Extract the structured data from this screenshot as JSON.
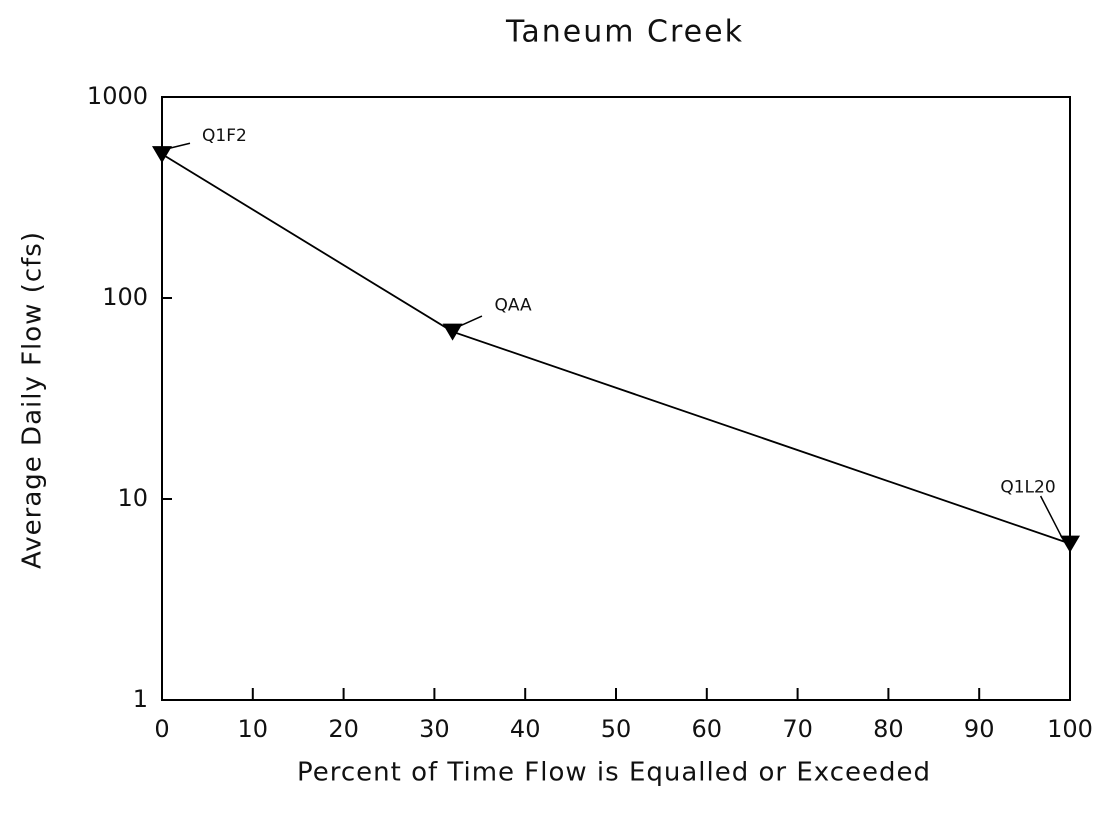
{
  "chart_data": {
    "type": "line",
    "title": "Taneum Creek",
    "x_label": "Percent of Time Flow is Equalled or Exceeded",
    "y_label": "Average Daily Flow (cfs)",
    "x": [
      0,
      32,
      100
    ],
    "values": [
      520,
      68,
      6
    ],
    "point_labels": [
      "Q1F2",
      "QAA",
      "Q1L20"
    ],
    "color": "#000000",
    "marker": "triangle-down",
    "xlim": [
      0,
      100
    ],
    "xticks": [
      0,
      10,
      20,
      30,
      40,
      50,
      60,
      70,
      80,
      90,
      100
    ],
    "ylim": [
      1,
      1000
    ],
    "yticks": [
      1,
      10,
      100,
      1000
    ],
    "y_log": true,
    "grid": false
  }
}
